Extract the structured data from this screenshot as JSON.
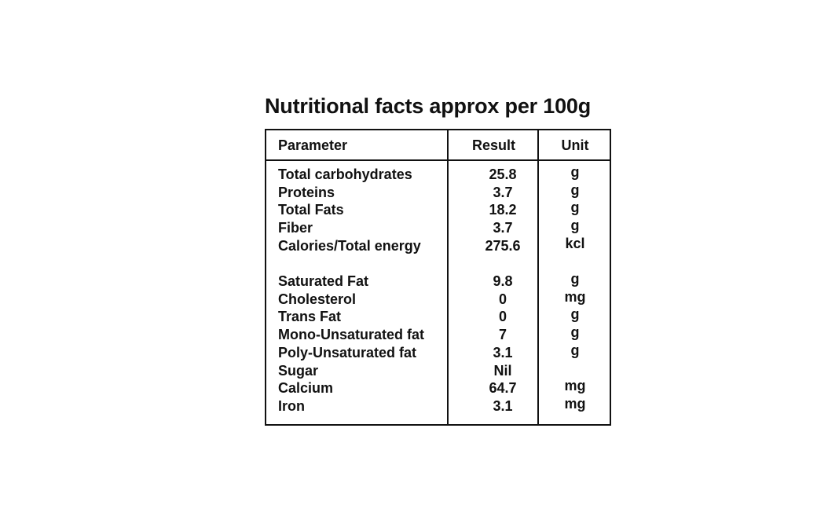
{
  "title": "Nutritional facts approx per 100g",
  "table": {
    "header": [
      "Parameter",
      "Result",
      "Unit"
    ],
    "groups": [
      [
        [
          "Total carbohydrates",
          "25.8",
          "g"
        ],
        [
          "Proteins",
          "3.7",
          "g"
        ],
        [
          "Total Fats",
          "18.2",
          "g"
        ],
        [
          "Fiber",
          "3.7",
          "g"
        ],
        [
          "Calories/Total energy",
          "275.6",
          "kcl"
        ]
      ],
      [
        [
          "Saturated Fat",
          "9.8",
          "g"
        ],
        [
          "Cholesterol",
          "0",
          "mg"
        ],
        [
          "Trans Fat",
          "0",
          "g"
        ],
        [
          "Mono-Unsaturated fat",
          "7",
          "g"
        ],
        [
          "Poly-Unsaturated fat",
          "3.1",
          "g"
        ],
        [
          "Sugar",
          "Nil"
        ],
        [
          "Calcium",
          "64.7",
          "mg"
        ],
        [
          "Iron",
          "3.1",
          "mg"
        ]
      ]
    ]
  }
}
